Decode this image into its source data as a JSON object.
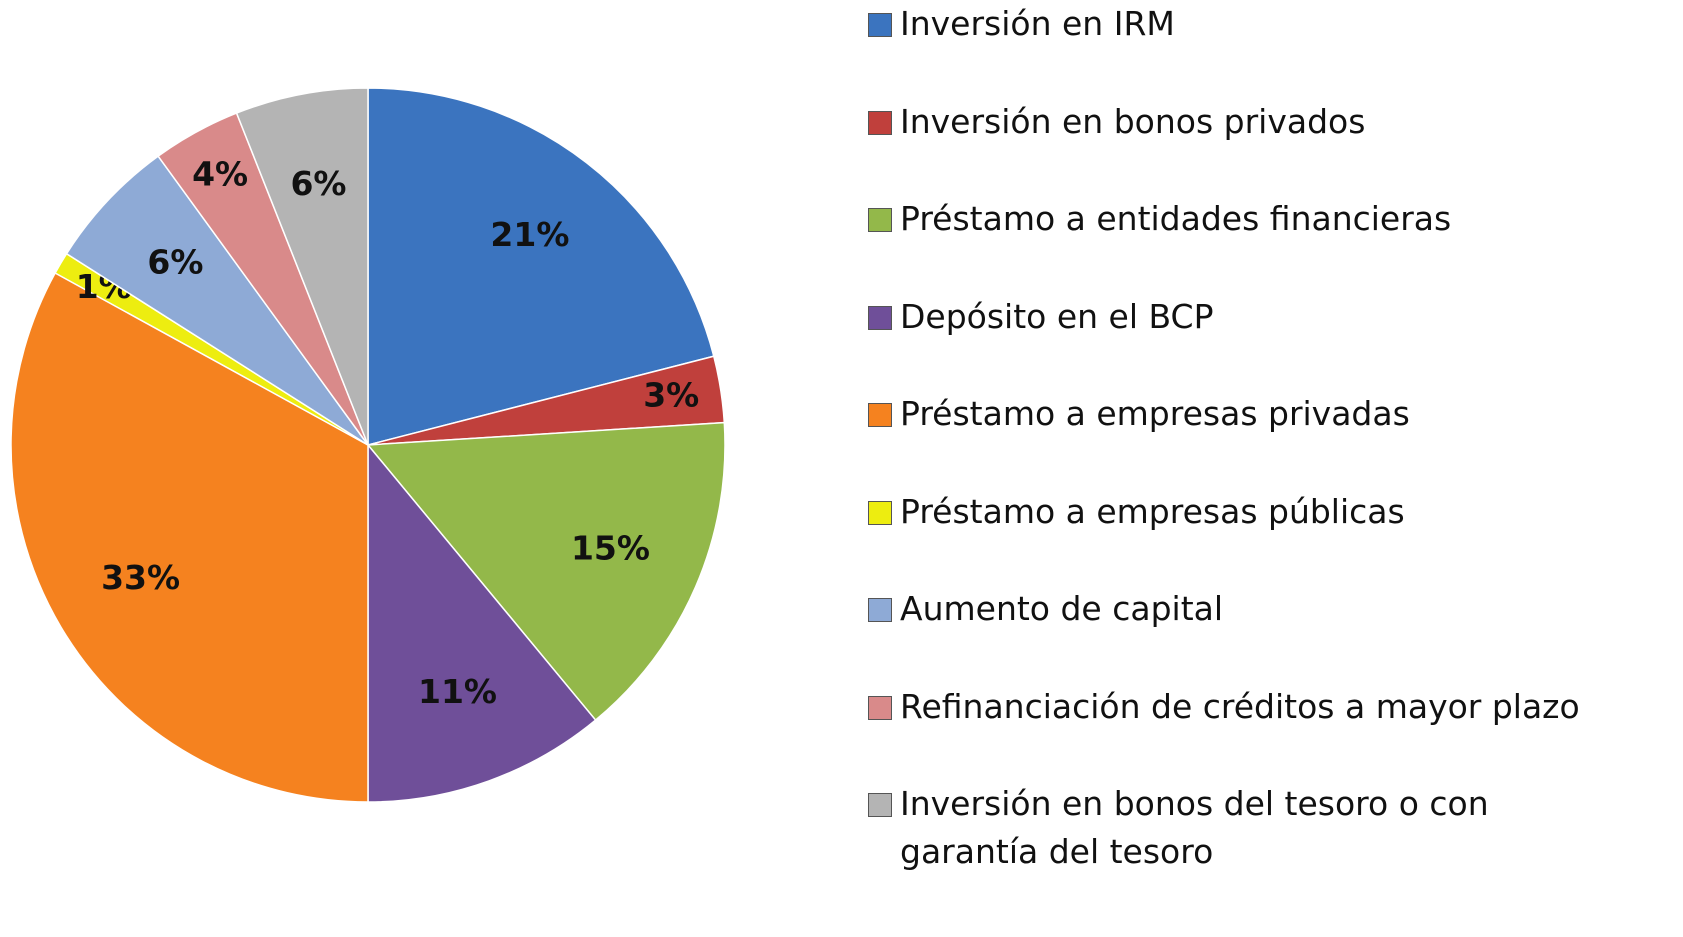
{
  "chart_data": {
    "type": "pie",
    "categories": [
      "Inversión en IRM",
      "Inversión en bonos privados",
      "Préstamo a entidades financieras",
      "Depósito en el BCP",
      "Préstamo a empresas privadas",
      "Préstamo a empresas públicas",
      "Aumento de capital",
      "Refinanciación de créditos a mayor plazo",
      "Inversión en bonos del tesoro o con garantía del tesoro"
    ],
    "values": [
      21,
      3,
      15,
      11,
      33,
      1,
      6,
      4,
      6
    ],
    "value_labels": [
      "21%",
      "3%",
      "15%",
      "11%",
      "33%",
      "1%",
      "6%",
      "4%",
      "6%"
    ],
    "colors": [
      "#3b74bf",
      "#c0403c",
      "#93b84a",
      "#6f4f99",
      "#f5821f",
      "#eded10",
      "#8eaad6",
      "#d98a8a",
      "#b4b4b4"
    ],
    "legend": "right"
  }
}
